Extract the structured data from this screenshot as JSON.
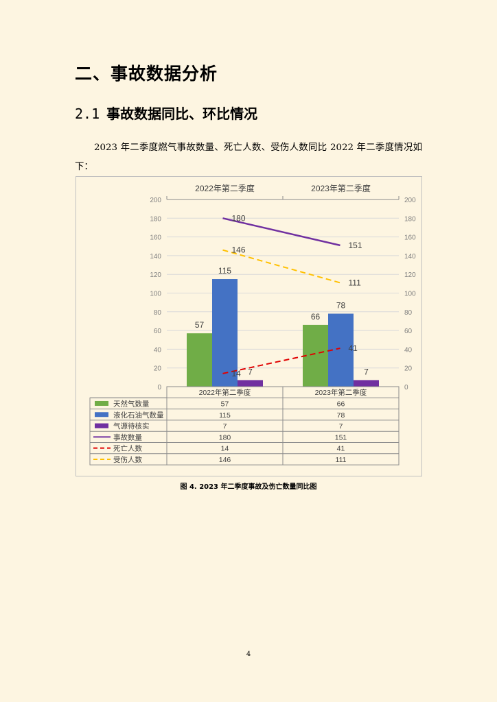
{
  "heading": "二、事故数据分析",
  "subheading": {
    "number": "2.1",
    "title": "事故数据同比、环比情况"
  },
  "paragraph": "2023 年二季度燃气事故数量、死亡人数、受伤人数同比 2022 年二季度情况如下：",
  "caption": "图 4. 2023 年二季度事故及伤亡数量同比图",
  "page_number": "4",
  "colors": {
    "natural_gas": "#70ad47",
    "lpg": "#4472c4",
    "pending": "#7030a0",
    "accidents": "#7030a0",
    "deaths": "#e00000",
    "injured": "#ffc000"
  },
  "chart_data": {
    "type": "bar",
    "categories": [
      "2022年第二季度",
      "2023年第二季度"
    ],
    "ylim": [
      0,
      200
    ],
    "y_ticks": [
      0,
      20,
      40,
      60,
      80,
      100,
      120,
      140,
      160,
      180,
      200
    ],
    "grid": true,
    "legend_position": "bottom data table",
    "series": [
      {
        "name": "天然气数量",
        "type": "bar",
        "values": [
          57,
          66
        ],
        "color": "#70ad47",
        "labels": [
          "57",
          "66"
        ]
      },
      {
        "name": "液化石油气数量",
        "type": "bar",
        "values": [
          115,
          78
        ],
        "color": "#4472c4",
        "labels": [
          "115",
          "78"
        ]
      },
      {
        "name": "气源待核实",
        "type": "bar",
        "values": [
          7,
          7
        ],
        "color": "#7030a0",
        "labels": [
          "7",
          "7"
        ]
      },
      {
        "name": "事故数量",
        "type": "line",
        "style": "solid",
        "values": [
          180,
          151
        ],
        "color": "#7030a0",
        "labels": [
          "180",
          "151"
        ]
      },
      {
        "name": "死亡人数",
        "type": "line",
        "style": "dashed",
        "values": [
          14,
          41
        ],
        "color": "#e00000",
        "labels": [
          "14",
          "41"
        ]
      },
      {
        "name": "受伤人数",
        "type": "line",
        "style": "dashed",
        "values": [
          146,
          111
        ],
        "color": "#ffc000",
        "labels": [
          "146",
          "111"
        ]
      }
    ]
  }
}
